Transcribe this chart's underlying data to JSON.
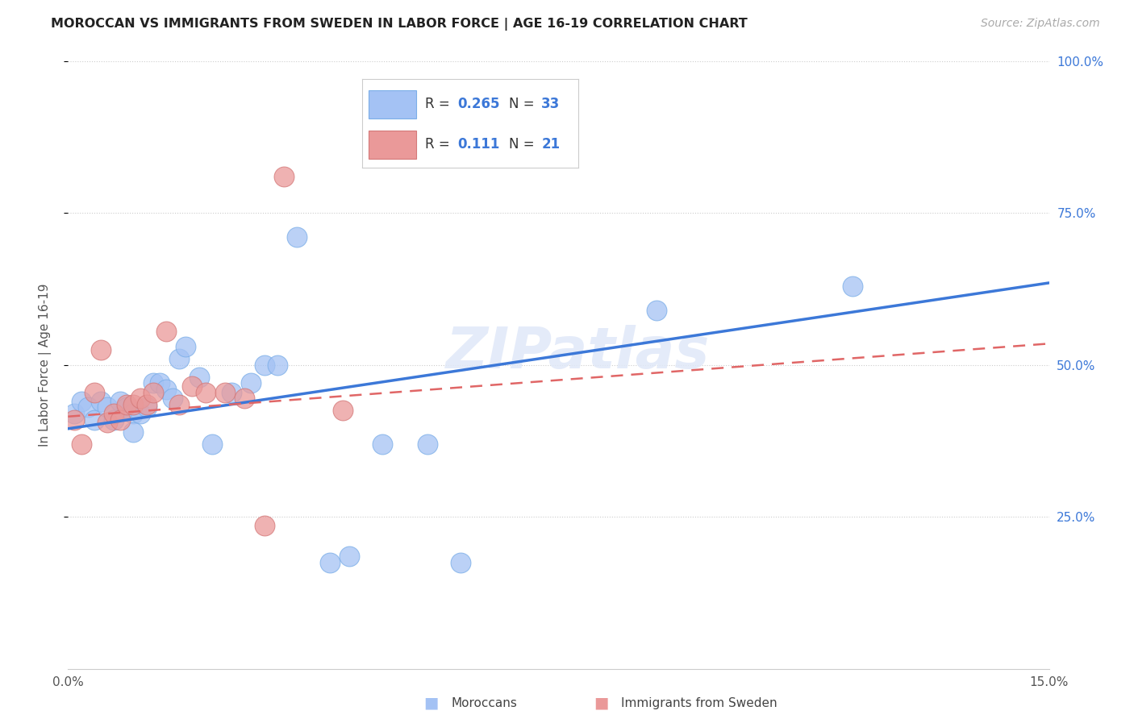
{
  "title": "MOROCCAN VS IMMIGRANTS FROM SWEDEN IN LABOR FORCE | AGE 16-19 CORRELATION CHART",
  "source": "Source: ZipAtlas.com",
  "ylabel": "In Labor Force | Age 16-19",
  "xlim": [
    0.0,
    0.15
  ],
  "ylim": [
    0.0,
    1.0
  ],
  "blue_color": "#a4c2f4",
  "pink_color": "#ea9999",
  "blue_line_color": "#3c78d8",
  "pink_line_color": "#e06666",
  "watermark": "ZIPatlas",
  "blue_scatter_x": [
    0.001,
    0.002,
    0.003,
    0.004,
    0.005,
    0.006,
    0.007,
    0.008,
    0.009,
    0.01,
    0.011,
    0.012,
    0.013,
    0.014,
    0.015,
    0.016,
    0.017,
    0.018,
    0.02,
    0.022,
    0.025,
    0.028,
    0.03,
    0.032,
    0.035,
    0.04,
    0.043,
    0.048,
    0.055,
    0.06,
    0.09,
    0.12,
    0.01
  ],
  "blue_scatter_y": [
    0.42,
    0.44,
    0.43,
    0.41,
    0.44,
    0.43,
    0.41,
    0.44,
    0.43,
    0.42,
    0.42,
    0.43,
    0.47,
    0.47,
    0.46,
    0.445,
    0.51,
    0.53,
    0.48,
    0.37,
    0.455,
    0.47,
    0.5,
    0.5,
    0.71,
    0.175,
    0.185,
    0.37,
    0.37,
    0.175,
    0.59,
    0.63,
    0.39
  ],
  "pink_scatter_x": [
    0.001,
    0.002,
    0.004,
    0.005,
    0.006,
    0.007,
    0.008,
    0.009,
    0.01,
    0.011,
    0.012,
    0.013,
    0.015,
    0.017,
    0.019,
    0.021,
    0.024,
    0.027,
    0.03,
    0.033,
    0.042
  ],
  "pink_scatter_y": [
    0.41,
    0.37,
    0.455,
    0.525,
    0.405,
    0.42,
    0.41,
    0.435,
    0.435,
    0.445,
    0.435,
    0.455,
    0.555,
    0.435,
    0.465,
    0.455,
    0.455,
    0.445,
    0.235,
    0.81,
    0.425
  ],
  "blue_line_x0": 0.0,
  "blue_line_y0": 0.395,
  "blue_line_x1": 0.15,
  "blue_line_y1": 0.635,
  "pink_line_x0": 0.0,
  "pink_line_y0": 0.415,
  "pink_line_x1": 0.15,
  "pink_line_y1": 0.535
}
